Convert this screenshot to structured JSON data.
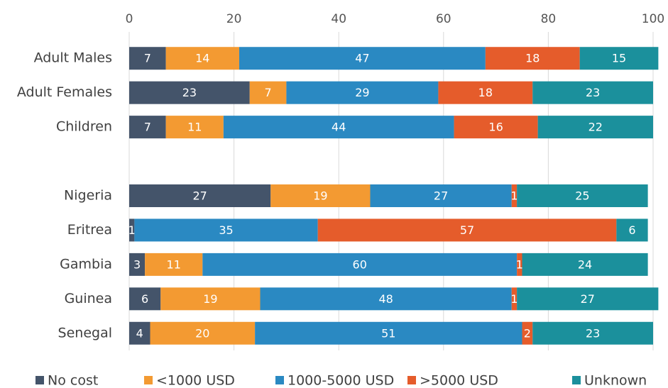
{
  "chart_data": {
    "type": "bar",
    "orientation": "horizontal",
    "stacked": true,
    "categories": [
      "Adult Males",
      "Adult Females",
      "Children",
      null,
      "Nigeria",
      "Eritrea",
      "Gambia",
      "Guinea",
      "Senegal"
    ],
    "series": [
      {
        "name": "No cost",
        "color": "#44546a",
        "values": [
          7,
          23,
          7,
          null,
          27,
          1,
          3,
          6,
          4
        ]
      },
      {
        "name": "<1000 USD",
        "color": "#f39a32",
        "values": [
          14,
          7,
          11,
          null,
          19,
          0,
          11,
          19,
          20
        ]
      },
      {
        "name": "1000-5000 USD",
        "color": "#2a89c2",
        "values": [
          47,
          29,
          44,
          null,
          27,
          35,
          60,
          48,
          51
        ]
      },
      {
        "name": ">5000 USD",
        "color": "#e55c2b",
        "values": [
          18,
          18,
          16,
          null,
          1,
          57,
          1,
          1,
          2
        ]
      },
      {
        "name": "Unknown",
        "color": "#1b909c",
        "values": [
          15,
          23,
          22,
          null,
          25,
          6,
          24,
          27,
          23
        ]
      }
    ],
    "xlim": [
      0,
      100
    ],
    "xticks": [
      0,
      20,
      40,
      60,
      80,
      100
    ],
    "grid": true,
    "legend": "bottom"
  }
}
